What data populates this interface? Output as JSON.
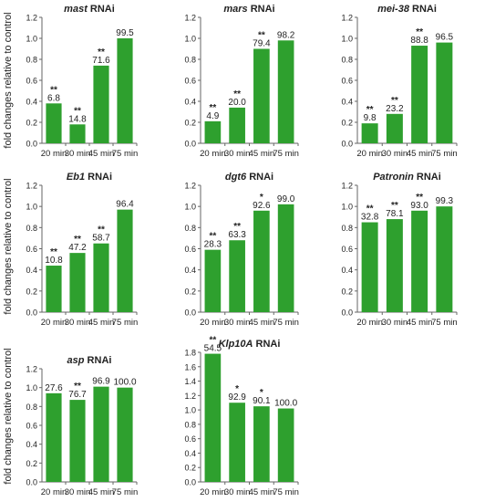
{
  "y_axis_label": "fold changes relative to control",
  "colors": {
    "bar": "#2ea02e",
    "axis": "#666666",
    "text": "#222222"
  },
  "chart_data": [
    {
      "type": "bar",
      "title": "mast",
      "title_suffix": " RNAi",
      "italic": true,
      "categories": [
        "20 min",
        "30 min",
        "45 min",
        "75 min"
      ],
      "values": [
        0.38,
        0.18,
        0.74,
        1.0
      ],
      "labels": [
        "6.8",
        "14.8",
        "71.6",
        "99.5"
      ],
      "stars": [
        "**",
        "**",
        "**",
        ""
      ],
      "ylim": [
        0,
        1.2
      ],
      "yticks": [
        "0.0",
        "0.2",
        "0.4",
        "0.6",
        "0.8",
        "1.0",
        "1.2"
      ]
    },
    {
      "type": "bar",
      "title": "mars",
      "title_suffix": " RNAi",
      "italic": true,
      "categories": [
        "20 min",
        "30 min",
        "45 min",
        "75 min"
      ],
      "values": [
        0.21,
        0.34,
        0.9,
        0.98
      ],
      "labels": [
        "4.9",
        "20.0",
        "79.4",
        "98.2"
      ],
      "stars": [
        "**",
        "**",
        "**",
        ""
      ],
      "ylim": [
        0,
        1.2
      ],
      "yticks": [
        "0.0",
        "0.2",
        "0.4",
        "0.6",
        "0.8",
        "1.0",
        "1.2"
      ]
    },
    {
      "type": "bar",
      "title": "mei-38",
      "title_suffix": " RNAi",
      "italic": true,
      "categories": [
        "20 min",
        "30 min",
        "45 min",
        "75 min"
      ],
      "values": [
        0.19,
        0.28,
        0.93,
        0.96
      ],
      "labels": [
        "9.8",
        "23.2",
        "88.8",
        "96.5"
      ],
      "stars": [
        "**",
        "**",
        "**",
        ""
      ],
      "ylim": [
        0,
        1.2
      ],
      "yticks": [
        "0.0",
        "0.2",
        "0.4",
        "0.6",
        "0.8",
        "1.0",
        "1.2"
      ]
    },
    {
      "type": "bar",
      "title": "Eb1",
      "title_suffix": " RNAi",
      "italic": true,
      "categories": [
        "20 min",
        "30 min",
        "45 min",
        "75 min"
      ],
      "values": [
        0.44,
        0.56,
        0.65,
        0.97
      ],
      "labels": [
        "10.8",
        "47.2",
        "58.7",
        "96.4"
      ],
      "stars": [
        "**",
        "**",
        "**",
        ""
      ],
      "ylim": [
        0,
        1.2
      ],
      "yticks": [
        "0.0",
        "0.2",
        "0.4",
        "0.6",
        "0.8",
        "1.0",
        "1.2"
      ]
    },
    {
      "type": "bar",
      "title": "dgt6",
      "title_suffix": " RNAi",
      "italic": true,
      "categories": [
        "20 min",
        "30 min",
        "45 min",
        "75 min"
      ],
      "values": [
        0.59,
        0.68,
        0.96,
        1.02
      ],
      "labels": [
        "28.3",
        "63.3",
        "92.6",
        "99.0"
      ],
      "stars": [
        "**",
        "**",
        "*",
        ""
      ],
      "ylim": [
        0,
        1.2
      ],
      "yticks": [
        "0.0",
        "0.2",
        "0.4",
        "0.6",
        "0.8",
        "1.0",
        "1.2"
      ]
    },
    {
      "type": "bar",
      "title": "Patronin",
      "title_suffix": " RNAi",
      "italic": true,
      "categories": [
        "20 min",
        "30 min",
        "45 min",
        "75 min"
      ],
      "values": [
        0.85,
        0.88,
        0.96,
        1.0
      ],
      "labels": [
        "32.8",
        "78.1",
        "93.0",
        "99.3"
      ],
      "stars": [
        "**",
        "**",
        "**",
        ""
      ],
      "ylim": [
        0,
        1.2
      ],
      "yticks": [
        "0.0",
        "0.2",
        "0.4",
        "0.6",
        "0.8",
        "1.0",
        "1.2"
      ]
    },
    {
      "type": "bar",
      "title": "asp",
      "title_suffix": " RNAi",
      "italic": true,
      "categories": [
        "20 min",
        "30 min",
        "45 min",
        "75 min"
      ],
      "values": [
        0.94,
        0.87,
        1.01,
        1.0
      ],
      "labels": [
        "27.6",
        "76.7",
        "96.9",
        "100.0"
      ],
      "stars": [
        "",
        "**",
        "",
        ""
      ],
      "ylim": [
        0,
        1.2
      ],
      "yticks": [
        "0.0",
        "0.2",
        "0.4",
        "0.6",
        "0.8",
        "1.0",
        "1.2"
      ]
    },
    {
      "type": "bar",
      "title": "Klp10A",
      "title_suffix": " RNAi",
      "italic": true,
      "categories": [
        "20 min",
        "30 min",
        "45 min",
        "75 min"
      ],
      "values": [
        1.78,
        1.1,
        1.05,
        1.02
      ],
      "labels": [
        "54.5",
        "92.9",
        "90.1",
        "100.0"
      ],
      "stars": [
        "**",
        "*",
        "*",
        ""
      ],
      "ylim": [
        0,
        1.8
      ],
      "yticks": [
        "0.0",
        "0.2",
        "0.4",
        "0.6",
        "0.8",
        "1.0",
        "1.2",
        "1.4",
        "1.6",
        "1.8"
      ]
    }
  ]
}
